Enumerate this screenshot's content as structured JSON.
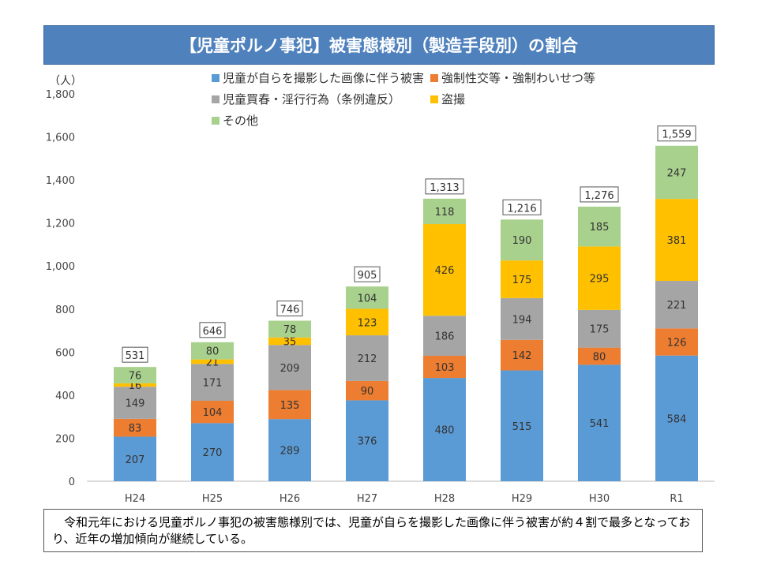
{
  "title": "【児童ポルノ事犯】被害態様別（製造手段別）の割合",
  "unit_label": "（人）",
  "note": "　令和元年における児童ポルノ事犯の被害態様別では、児童が自らを撮影した画像に伴う被害が約４割で最多となっており、近年の増加傾向が継続している。",
  "chart_data": {
    "type": "bar",
    "stacked": true,
    "title": "【児童ポルノ事犯】被害態様別（製造手段別）の割合",
    "ylabel": "（人）",
    "ylim": [
      0,
      1800
    ],
    "yticks": [
      0,
      200,
      400,
      600,
      800,
      1000,
      1200,
      1400,
      1600,
      1800
    ],
    "ytick_labels": [
      "0",
      "200",
      "400",
      "600",
      "800",
      "1,000",
      "1,200",
      "1,400",
      "1,600",
      "1,800"
    ],
    "grid": false,
    "legend_position": "top",
    "categories": [
      "H24",
      "H25",
      "H26",
      "H27",
      "H28",
      "H29",
      "H30",
      "R1"
    ],
    "series": [
      {
        "name": "児童が自らを撮影した画像に伴う被害",
        "color": "#5b9bd5",
        "values": [
          207,
          270,
          289,
          376,
          480,
          515,
          541,
          584
        ]
      },
      {
        "name": "強制性交等・強制わいせつ等",
        "color": "#ed7d31",
        "values": [
          83,
          104,
          135,
          90,
          103,
          142,
          80,
          126
        ]
      },
      {
        "name": "児童買春・淫行行為（条例違反）",
        "color": "#a5a5a5",
        "values": [
          149,
          171,
          209,
          212,
          186,
          194,
          175,
          221
        ]
      },
      {
        "name": "盗撮",
        "color": "#ffc000",
        "values": [
          16,
          21,
          35,
          123,
          426,
          175,
          295,
          381
        ]
      },
      {
        "name": "その他",
        "color": "#a9d18e",
        "values": [
          76,
          80,
          78,
          104,
          118,
          190,
          185,
          247
        ]
      }
    ],
    "totals": [
      531,
      646,
      746,
      905,
      1313,
      1216,
      1276,
      1559
    ],
    "total_labels": [
      "531",
      "646",
      "746",
      "905",
      "1,313",
      "1,216",
      "1,276",
      "1,559"
    ]
  }
}
